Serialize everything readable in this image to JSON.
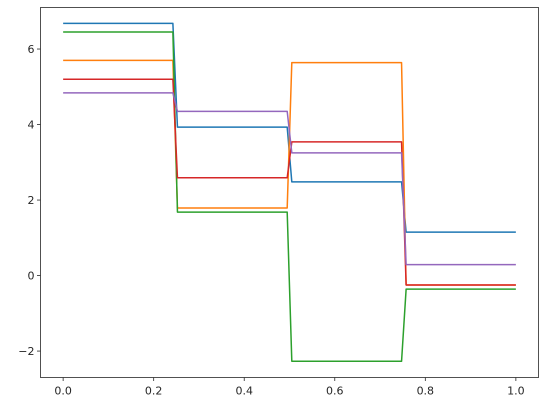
{
  "chart_data": {
    "type": "line",
    "title": "",
    "xlabel": "",
    "ylabel": "",
    "xlim": [
      -0.05,
      1.05
    ],
    "ylim": [
      -2.7,
      7.1
    ],
    "grid": false,
    "x_ticks": [
      0.0,
      0.2,
      0.4,
      0.6,
      0.8,
      1.0
    ],
    "x_tick_labels": [
      "0.0",
      "0.2",
      "0.4",
      "0.6",
      "0.8",
      "1.0"
    ],
    "y_ticks": [
      -2,
      0,
      2,
      4,
      6
    ],
    "y_tick_labels": [
      "−2",
      "0",
      "2",
      "4",
      "6"
    ],
    "series": [
      {
        "color": "#1f77b4",
        "x": [
          0.0,
          0.2424,
          0.2525,
          0.4949,
          0.5051,
          0.7475,
          0.7576,
          1.0
        ],
        "y": [
          6.68,
          6.68,
          3.93,
          3.93,
          2.48,
          2.48,
          1.15,
          1.15
        ]
      },
      {
        "color": "#ff7f0e",
        "x": [
          0.0,
          0.2424,
          0.2525,
          0.4949,
          0.5051,
          0.7475,
          0.7576,
          1.0
        ],
        "y": [
          5.7,
          5.7,
          1.79,
          1.79,
          5.64,
          5.64,
          -0.25,
          -0.25
        ]
      },
      {
        "color": "#2ca02c",
        "x": [
          0.0,
          0.2424,
          0.2525,
          0.4949,
          0.5051,
          0.7475,
          0.7576,
          1.0
        ],
        "y": [
          6.45,
          6.45,
          1.68,
          1.68,
          -2.27,
          -2.27,
          -0.36,
          -0.36
        ]
      },
      {
        "color": "#d62728",
        "x": [
          0.0,
          0.2424,
          0.2525,
          0.4949,
          0.5051,
          0.7475,
          0.7576,
          1.0
        ],
        "y": [
          5.2,
          5.2,
          2.59,
          2.59,
          3.54,
          3.54,
          -0.25,
          -0.25
        ]
      },
      {
        "color": "#9467bd",
        "x": [
          0.0,
          0.2424,
          0.2525,
          0.4949,
          0.5051,
          0.7475,
          0.7576,
          1.0
        ],
        "y": [
          4.84,
          4.84,
          4.35,
          4.35,
          3.25,
          3.25,
          0.29,
          0.29
        ]
      }
    ]
  }
}
